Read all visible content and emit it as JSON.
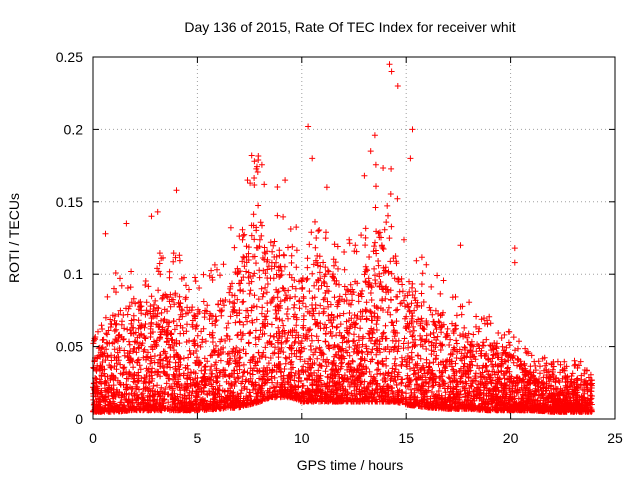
{
  "chart_data": {
    "type": "scatter",
    "title": "Day 136 of 2015, Rate Of TEC Index for receiver whit",
    "xlabel": "GPS time / hours",
    "ylabel": "ROTI / TECUs",
    "xlim": [
      0,
      25
    ],
    "ylim": [
      0,
      0.25
    ],
    "xticks": [
      0,
      5,
      10,
      15,
      20,
      25
    ],
    "yticks": [
      0,
      0.05,
      0.1,
      0.15,
      0.2,
      0.25
    ],
    "xtick_labels": [
      "0",
      "5",
      "10",
      "15",
      "20",
      "25"
    ],
    "ytick_labels": [
      "0",
      "0.05",
      "0.1",
      "0.15",
      "0.2",
      "0.25"
    ],
    "grid": true,
    "marker": "+",
    "color": "#ff0000",
    "x_range_of_data": [
      0,
      23.9
    ],
    "envelope": {
      "x": [
        0,
        1,
        2,
        3,
        4,
        5,
        6,
        7,
        7.5,
        8,
        8.5,
        9,
        9.5,
        10,
        10.5,
        11,
        12,
        13,
        13.5,
        14,
        14.5,
        15,
        16,
        17,
        18,
        19,
        20,
        21,
        22,
        23,
        23.9
      ],
      "typical_max": [
        0.04,
        0.075,
        0.085,
        0.085,
        0.09,
        0.075,
        0.08,
        0.11,
        0.13,
        0.14,
        0.12,
        0.12,
        0.1,
        0.1,
        0.11,
        0.11,
        0.09,
        0.1,
        0.13,
        0.14,
        0.12,
        0.1,
        0.08,
        0.07,
        0.06,
        0.055,
        0.045,
        0.035,
        0.03,
        0.03,
        0.03
      ],
      "baseline": [
        0.005,
        0.005,
        0.006,
        0.006,
        0.006,
        0.006,
        0.007,
        0.008,
        0.01,
        0.012,
        0.015,
        0.015,
        0.015,
        0.012,
        0.012,
        0.012,
        0.012,
        0.012,
        0.012,
        0.012,
        0.012,
        0.01,
        0.008,
        0.007,
        0.007,
        0.006,
        0.006,
        0.006,
        0.005,
        0.005,
        0.005
      ]
    },
    "notable_points": [
      {
        "x": 0.6,
        "y": 0.128
      },
      {
        "x": 1.6,
        "y": 0.135
      },
      {
        "x": 2.8,
        "y": 0.14
      },
      {
        "x": 3.1,
        "y": 0.143
      },
      {
        "x": 4.0,
        "y": 0.158
      },
      {
        "x": 7.4,
        "y": 0.165
      },
      {
        "x": 7.6,
        "y": 0.182
      },
      {
        "x": 8.2,
        "y": 0.162
      },
      {
        "x": 9.2,
        "y": 0.165
      },
      {
        "x": 10.3,
        "y": 0.202
      },
      {
        "x": 10.5,
        "y": 0.18
      },
      {
        "x": 11.2,
        "y": 0.16
      },
      {
        "x": 13.0,
        "y": 0.168
      },
      {
        "x": 13.3,
        "y": 0.185
      },
      {
        "x": 13.5,
        "y": 0.196
      },
      {
        "x": 14.2,
        "y": 0.245
      },
      {
        "x": 14.3,
        "y": 0.24
      },
      {
        "x": 14.6,
        "y": 0.23
      },
      {
        "x": 15.3,
        "y": 0.2
      },
      {
        "x": 15.2,
        "y": 0.18
      },
      {
        "x": 17.6,
        "y": 0.12
      },
      {
        "x": 20.2,
        "y": 0.118
      },
      {
        "x": 20.2,
        "y": 0.108
      }
    ]
  }
}
